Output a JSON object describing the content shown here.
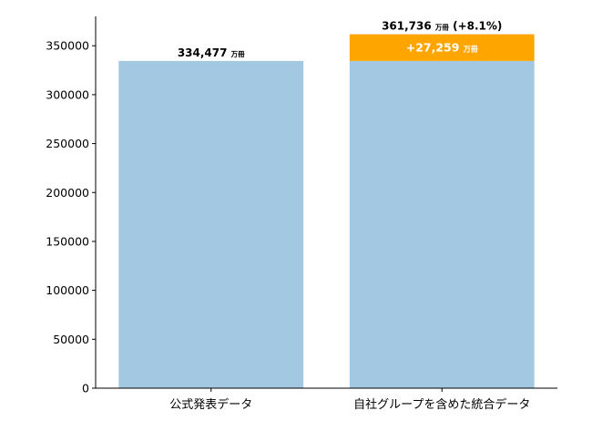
{
  "chart_data": {
    "type": "bar",
    "stacked": true,
    "categories": [
      "公式発表データ",
      "自社グループを含めた統合データ"
    ],
    "series": [
      {
        "values": [
          334477,
          334477
        ],
        "color": "#a2c8e2"
      },
      {
        "values": [
          0,
          27259
        ],
        "color": "#ffa500"
      }
    ],
    "ylim": [
      0,
      380000
    ],
    "yticks": [
      0,
      50000,
      100000,
      150000,
      200000,
      250000,
      300000,
      350000
    ],
    "grid": false,
    "annotations": {
      "totals": [
        {
          "number": "334,477",
          "unit": "万冊",
          "suffix": ""
        },
        {
          "number": "361,736",
          "unit": "万冊",
          "suffix": "(+8.1%)"
        }
      ],
      "difference": {
        "number": "+27,259",
        "unit": "万冊"
      }
    }
  }
}
